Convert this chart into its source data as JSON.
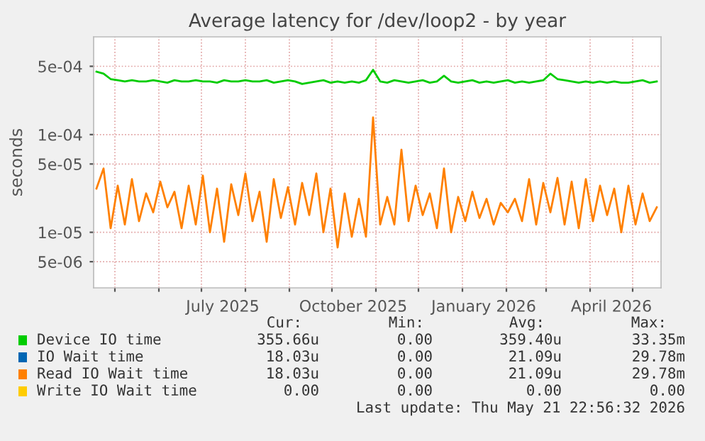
{
  "chart_data": {
    "type": "line",
    "title": "Average latency for /dev/loop2 - by year",
    "ylabel": "seconds",
    "log": "y",
    "grid": true,
    "legend": "bottom",
    "ylim": [
      2.7e-06,
      0.001
    ],
    "yticks": [
      {
        "value": 5e-06,
        "label": "5e-06"
      },
      {
        "value": 1e-05,
        "label": "1e-05"
      },
      {
        "value": 5e-05,
        "label": "5e-05"
      },
      {
        "value": 0.0001,
        "label": "1e-04"
      },
      {
        "value": 0.0005,
        "label": "5e-04"
      }
    ],
    "xlim": [
      "2025-04-16",
      "2026-05-21"
    ],
    "xticks": [
      {
        "value": "2025-05-01",
        "label": null
      },
      {
        "value": "2025-06-01",
        "label": null
      },
      {
        "value": "2025-07-01",
        "label": null
      },
      {
        "value": "2025-07-16",
        "label": "July 2025"
      },
      {
        "value": "2025-08-01",
        "label": null
      },
      {
        "value": "2025-09-01",
        "label": null
      },
      {
        "value": "2025-10-01",
        "label": null
      },
      {
        "value": "2025-10-16",
        "label": "October 2025"
      },
      {
        "value": "2025-11-01",
        "label": null
      },
      {
        "value": "2025-12-01",
        "label": null
      },
      {
        "value": "2026-01-01",
        "label": null
      },
      {
        "value": "2026-01-16",
        "label": "January 2026"
      },
      {
        "value": "2026-02-01",
        "label": null
      },
      {
        "value": "2026-03-01",
        "label": null
      },
      {
        "value": "2026-04-01",
        "label": null
      },
      {
        "value": "2026-04-16",
        "label": "April 2026"
      },
      {
        "value": "2026-05-01",
        "label": null
      }
    ],
    "x": [
      "2025-04-18",
      "2025-04-23",
      "2025-04-28",
      "2025-05-03",
      "2025-05-08",
      "2025-05-13",
      "2025-05-18",
      "2025-05-23",
      "2025-05-28",
      "2025-06-02",
      "2025-06-07",
      "2025-06-12",
      "2025-06-17",
      "2025-06-22",
      "2025-06-27",
      "2025-07-02",
      "2025-07-07",
      "2025-07-12",
      "2025-07-17",
      "2025-07-22",
      "2025-07-27",
      "2025-08-01",
      "2025-08-06",
      "2025-08-11",
      "2025-08-16",
      "2025-08-21",
      "2025-08-26",
      "2025-08-31",
      "2025-09-05",
      "2025-09-10",
      "2025-09-15",
      "2025-09-20",
      "2025-09-25",
      "2025-09-30",
      "2025-10-05",
      "2025-10-10",
      "2025-10-15",
      "2025-10-20",
      "2025-10-25",
      "2025-10-30",
      "2025-11-04",
      "2025-11-09",
      "2025-11-14",
      "2025-11-19",
      "2025-11-24",
      "2025-11-29",
      "2025-12-04",
      "2025-12-09",
      "2025-12-14",
      "2025-12-19",
      "2025-12-24",
      "2025-12-29",
      "2026-01-03",
      "2026-01-08",
      "2026-01-13",
      "2026-01-18",
      "2026-01-23",
      "2026-01-28",
      "2026-02-02",
      "2026-02-07",
      "2026-02-12",
      "2026-02-17",
      "2026-02-22",
      "2026-02-27",
      "2026-03-04",
      "2026-03-09",
      "2026-03-14",
      "2026-03-19",
      "2026-03-24",
      "2026-03-29",
      "2026-04-03",
      "2026-04-08",
      "2026-04-13",
      "2026-04-18",
      "2026-04-23",
      "2026-04-28",
      "2026-05-03",
      "2026-05-08",
      "2026-05-13",
      "2026-05-18"
    ],
    "series": [
      {
        "name": "Device IO time",
        "color": "#00cc00",
        "values": [
          0.00044,
          0.00042,
          0.00037,
          0.00036,
          0.00035,
          0.00036,
          0.00035,
          0.00035,
          0.00036,
          0.00035,
          0.00034,
          0.00036,
          0.00035,
          0.00035,
          0.00036,
          0.00035,
          0.00035,
          0.00034,
          0.00036,
          0.00035,
          0.00035,
          0.00036,
          0.00035,
          0.00035,
          0.00036,
          0.00034,
          0.00035,
          0.00036,
          0.00035,
          0.00033,
          0.00034,
          0.00035,
          0.00036,
          0.00034,
          0.00035,
          0.00034,
          0.00035,
          0.00034,
          0.00036,
          0.00046,
          0.00035,
          0.00034,
          0.00036,
          0.00035,
          0.00034,
          0.00035,
          0.00036,
          0.00034,
          0.00035,
          0.0004,
          0.00035,
          0.00034,
          0.00035,
          0.00036,
          0.00034,
          0.00035,
          0.00034,
          0.00035,
          0.00036,
          0.00034,
          0.00035,
          0.00034,
          0.00035,
          0.00036,
          0.00042,
          0.00037,
          0.00036,
          0.00035,
          0.00034,
          0.00035,
          0.00034,
          0.00035,
          0.00034,
          0.00035,
          0.00034,
          0.00034,
          0.00035,
          0.00036,
          0.00034,
          0.00035
        ]
      },
      {
        "name": "IO Wait time",
        "color": "#0066b3",
        "values": [
          null,
          null,
          null,
          null,
          null,
          null,
          null,
          null,
          null,
          null,
          null,
          null,
          null,
          null,
          null,
          null,
          null,
          null,
          null,
          null,
          null,
          null,
          null,
          null,
          null,
          null,
          null,
          null,
          null,
          null,
          null,
          null,
          null,
          null,
          null,
          null,
          null,
          null,
          null,
          null,
          null,
          null,
          null,
          null,
          null,
          null,
          null,
          null,
          null,
          null,
          null,
          null,
          null,
          null,
          null,
          null,
          null,
          null,
          null,
          null,
          null,
          null,
          null,
          null,
          null,
          null,
          null,
          null,
          null,
          null,
          null,
          null,
          null,
          null,
          null,
          null,
          null,
          null,
          null,
          null
        ]
      },
      {
        "name": "Read IO Wait time",
        "color": "#ff8000",
        "values": [
          2.8e-05,
          4.5e-05,
          1.1e-05,
          3e-05,
          1.2e-05,
          3.5e-05,
          1.3e-05,
          2.5e-05,
          1.6e-05,
          3.3e-05,
          1.8e-05,
          2.6e-05,
          1.1e-05,
          3e-05,
          1.2e-05,
          3.8e-05,
          1e-05,
          2.8e-05,
          8e-06,
          3.1e-05,
          1.5e-05,
          4e-05,
          1.3e-05,
          2.6e-05,
          8e-06,
          3.5e-05,
          1.4e-05,
          2.9e-05,
          1.2e-05,
          3.2e-05,
          1.5e-05,
          4e-05,
          1e-05,
          2.8e-05,
          7e-06,
          2.5e-05,
          9e-06,
          2.2e-05,
          9e-06,
          0.00015,
          1.2e-05,
          2.3e-05,
          1.2e-05,
          7e-05,
          1.3e-05,
          3e-05,
          1.5e-05,
          2.5e-05,
          1.1e-05,
          4.5e-05,
          1e-05,
          2.3e-05,
          1.3e-05,
          2.6e-05,
          1.4e-05,
          2.2e-05,
          1.2e-05,
          2e-05,
          1.6e-05,
          2.2e-05,
          1.3e-05,
          3.5e-05,
          1.2e-05,
          3.2e-05,
          1.6e-05,
          3.6e-05,
          1.2e-05,
          3.3e-05,
          1.1e-05,
          3.5e-05,
          1.3e-05,
          3e-05,
          1.5e-05,
          2.8e-05,
          1e-05,
          3e-05,
          1.2e-05,
          2.5e-05,
          1.3e-05,
          1.8e-05
        ]
      },
      {
        "name": "Write IO Wait time",
        "color": "#ffcc00",
        "values": [
          null,
          null,
          null,
          null,
          null,
          null,
          null,
          null,
          null,
          null,
          null,
          null,
          null,
          null,
          null,
          null,
          null,
          null,
          null,
          null,
          null,
          null,
          null,
          null,
          null,
          null,
          null,
          null,
          null,
          null,
          null,
          null,
          null,
          null,
          null,
          null,
          null,
          null,
          null,
          null,
          null,
          null,
          null,
          null,
          null,
          null,
          null,
          null,
          null,
          null,
          null,
          null,
          null,
          null,
          null,
          null,
          null,
          null,
          null,
          null,
          null,
          null,
          null,
          null,
          null,
          null,
          null,
          null,
          null,
          null,
          null,
          null,
          null,
          null,
          null,
          null,
          null,
          null,
          null,
          null
        ]
      }
    ],
    "annotations": [
      "Cur:",
      "Min:",
      "Avg:",
      "Max:",
      "355.66u",
      "0.00",
      "359.40u",
      "33.35m",
      "18.03u",
      "0.00",
      "21.09u",
      "29.78m",
      "18.03u",
      "0.00",
      "21.09u",
      "29.78m",
      "0.00",
      "0.00",
      "0.00",
      "0.00",
      "Last update: Thu May 21 22:56:32 2026"
    ]
  }
}
